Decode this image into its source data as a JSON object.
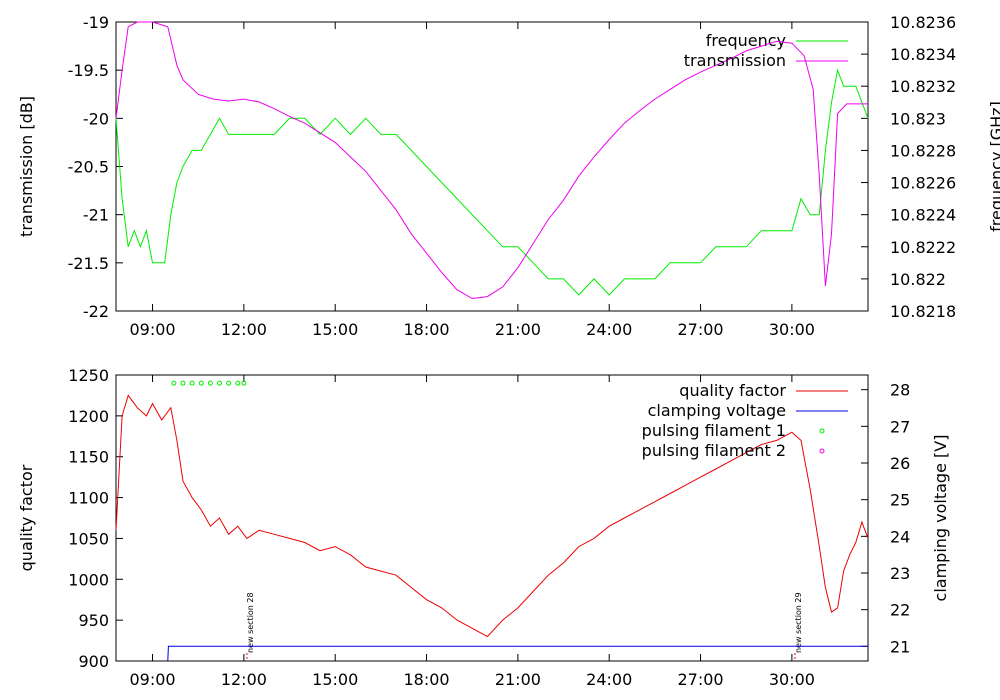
{
  "chart_data": [
    {
      "type": "line",
      "ylabel": "transmission [dB]",
      "y2label": "frequency [GHz]",
      "xticks": [
        "09:00",
        "12:00",
        "15:00",
        "18:00",
        "21:00",
        "24:00",
        "27:00",
        "30:00"
      ],
      "x_tick_hours": [
        9,
        12,
        15,
        18,
        21,
        24,
        27,
        30
      ],
      "xlim_hours": [
        7.8,
        32.5
      ],
      "ylim": [
        -22,
        -19
      ],
      "y_ticks": [
        "-19",
        "-19.5",
        "-20",
        "-20.5",
        "-21",
        "-21.5",
        "-22"
      ],
      "y_tick_values": [
        -19,
        -19.5,
        -20,
        -20.5,
        -21,
        -21.5,
        -22
      ],
      "y2lim": [
        10.8218,
        10.8236
      ],
      "y2_ticks": [
        "10.8236",
        "10.8234",
        "10.8232",
        "10.823",
        "10.8228",
        "10.8226",
        "10.8224",
        "10.8222",
        "10.822",
        "10.8218"
      ],
      "y2_tick_values": [
        10.8236,
        10.8234,
        10.8232,
        10.823,
        10.8228,
        10.8226,
        10.8224,
        10.8222,
        10.822,
        10.8218
      ],
      "legend_position": "top-right",
      "series": [
        {
          "name": "frequency",
          "axis": "y2",
          "color": "#00ee00",
          "x_hours": [
            7.8,
            8.0,
            8.2,
            8.4,
            8.6,
            8.8,
            9.0,
            9.2,
            9.4,
            9.6,
            9.8,
            10.0,
            10.3,
            10.6,
            10.9,
            11.2,
            11.5,
            11.8,
            12.1,
            12.5,
            13.0,
            13.5,
            14.0,
            14.5,
            15.0,
            15.5,
            16.0,
            16.5,
            17.0,
            17.5,
            18.0,
            18.5,
            19.0,
            19.5,
            20.0,
            20.5,
            21.0,
            21.5,
            22.0,
            22.5,
            23.0,
            23.5,
            24.0,
            24.5,
            25.0,
            25.5,
            26.0,
            26.5,
            27.0,
            27.5,
            28.0,
            28.5,
            29.0,
            29.5,
            30.0,
            30.3,
            30.6,
            30.9,
            31.1,
            31.3,
            31.5,
            31.7,
            31.9,
            32.1,
            32.3,
            32.5
          ],
          "values": [
            10.823,
            10.8225,
            10.8222,
            10.8223,
            10.8222,
            10.8223,
            10.8221,
            10.8221,
            10.8221,
            10.8224,
            10.8226,
            10.8227,
            10.8228,
            10.8228,
            10.8229,
            10.823,
            10.8229,
            10.8229,
            10.8229,
            10.8229,
            10.8229,
            10.823,
            10.823,
            10.8229,
            10.823,
            10.8229,
            10.823,
            10.8229,
            10.8229,
            10.8228,
            10.8227,
            10.8226,
            10.8225,
            10.8224,
            10.8223,
            10.8222,
            10.8222,
            10.8221,
            10.822,
            10.822,
            10.8219,
            10.822,
            10.8219,
            10.822,
            10.822,
            10.822,
            10.8221,
            10.8221,
            10.8221,
            10.8222,
            10.8222,
            10.8222,
            10.8223,
            10.8223,
            10.8223,
            10.8225,
            10.8224,
            10.8224,
            10.8228,
            10.8231,
            10.8233,
            10.8232,
            10.8232,
            10.8232,
            10.8231,
            10.823
          ]
        },
        {
          "name": "transmission",
          "axis": "y",
          "color": "#ee00ee",
          "x_hours": [
            7.8,
            8.0,
            8.2,
            8.5,
            9.0,
            9.5,
            9.8,
            10.0,
            10.5,
            11.0,
            11.5,
            12.0,
            12.5,
            13.0,
            13.5,
            14.0,
            14.5,
            15.0,
            15.5,
            16.0,
            16.5,
            17.0,
            17.5,
            18.0,
            18.5,
            19.0,
            19.5,
            20.0,
            20.5,
            21.0,
            21.5,
            22.0,
            22.5,
            23.0,
            23.5,
            24.0,
            24.5,
            25.0,
            25.5,
            26.0,
            26.5,
            27.0,
            27.5,
            28.0,
            28.5,
            29.0,
            29.5,
            30.0,
            30.4,
            30.7,
            30.9,
            31.1,
            31.3,
            31.5,
            31.8,
            32.1,
            32.5
          ],
          "values": [
            -20.0,
            -19.5,
            -19.05,
            -19.0,
            -19.0,
            -19.05,
            -19.45,
            -19.6,
            -19.75,
            -19.8,
            -19.82,
            -19.8,
            -19.83,
            -19.9,
            -19.98,
            -20.05,
            -20.15,
            -20.25,
            -20.4,
            -20.55,
            -20.75,
            -20.95,
            -21.2,
            -21.4,
            -21.6,
            -21.78,
            -21.87,
            -21.85,
            -21.75,
            -21.55,
            -21.3,
            -21.05,
            -20.85,
            -20.6,
            -20.4,
            -20.22,
            -20.05,
            -19.92,
            -19.8,
            -19.7,
            -19.6,
            -19.52,
            -19.45,
            -19.38,
            -19.3,
            -19.25,
            -19.2,
            -19.22,
            -19.35,
            -19.7,
            -20.6,
            -21.74,
            -21.2,
            -19.95,
            -19.85,
            -19.85,
            -19.85
          ]
        }
      ]
    },
    {
      "type": "line",
      "ylabel": "quality factor",
      "y2label": "clamping voltage [V]",
      "xticks": [
        "09:00",
        "12:00",
        "15:00",
        "18:00",
        "21:00",
        "24:00",
        "27:00",
        "30:00"
      ],
      "x_tick_hours": [
        9,
        12,
        15,
        18,
        21,
        24,
        27,
        30
      ],
      "xlim_hours": [
        7.8,
        32.5
      ],
      "ylim": [
        900,
        1250
      ],
      "y_ticks": [
        "1250",
        "1200",
        "1150",
        "1100",
        "1050",
        "1000",
        "950",
        "900"
      ],
      "y_tick_values": [
        1250,
        1200,
        1150,
        1100,
        1050,
        1000,
        950,
        900
      ],
      "y2lim": [
        20.6,
        28.4
      ],
      "y2_ticks": [
        "28",
        "27",
        "26",
        "25",
        "24",
        "23",
        "22",
        "21"
      ],
      "y2_tick_values": [
        28,
        27,
        26,
        25,
        24,
        23,
        22,
        21
      ],
      "legend_position": "top-right",
      "annotations": [
        {
          "text": "new section 28",
          "x_hour": 12.1
        },
        {
          "text": "new section 29",
          "x_hour": 30.1
        }
      ],
      "series": [
        {
          "name": "quality factor",
          "axis": "y",
          "color": "#ee0000",
          "x_hours": [
            7.8,
            8.0,
            8.2,
            8.5,
            8.8,
            9.0,
            9.3,
            9.6,
            9.8,
            10.0,
            10.3,
            10.6,
            10.9,
            11.2,
            11.5,
            11.8,
            12.1,
            12.5,
            13.0,
            13.5,
            14.0,
            14.5,
            15.0,
            15.5,
            16.0,
            16.5,
            17.0,
            17.5,
            18.0,
            18.5,
            19.0,
            19.5,
            20.0,
            20.5,
            21.0,
            21.5,
            22.0,
            22.5,
            23.0,
            23.5,
            24.0,
            24.5,
            25.0,
            25.5,
            26.0,
            26.5,
            27.0,
            27.5,
            28.0,
            28.5,
            29.0,
            29.5,
            30.0,
            30.3,
            30.6,
            30.9,
            31.1,
            31.3,
            31.5,
            31.7,
            31.9,
            32.1,
            32.3,
            32.5
          ],
          "values": [
            1060,
            1200,
            1225,
            1210,
            1200,
            1215,
            1195,
            1210,
            1170,
            1120,
            1100,
            1085,
            1065,
            1075,
            1055,
            1065,
            1050,
            1060,
            1055,
            1050,
            1045,
            1035,
            1040,
            1030,
            1015,
            1010,
            1005,
            990,
            975,
            965,
            950,
            940,
            930,
            950,
            965,
            985,
            1005,
            1020,
            1040,
            1050,
            1065,
            1075,
            1085,
            1095,
            1105,
            1115,
            1125,
            1135,
            1145,
            1155,
            1165,
            1170,
            1180,
            1170,
            1110,
            1040,
            990,
            960,
            965,
            1010,
            1030,
            1045,
            1070,
            1050
          ]
        },
        {
          "name": "clamping voltage",
          "axis": "y2",
          "color": "#0000ee",
          "x_hours": [
            9.5,
            9.52,
            32.5
          ],
          "values": [
            20.6,
            21.0,
            21.0
          ]
        },
        {
          "name": "pulsing filament 1",
          "axis": "y",
          "style": "points",
          "color": "#00ee00",
          "x_hours": [
            9.7,
            10.0,
            10.3,
            10.6,
            10.9,
            11.2,
            11.5,
            11.8,
            12.0
          ],
          "values": [
            1240,
            1240,
            1240,
            1240,
            1240,
            1240,
            1240,
            1240,
            1240
          ]
        },
        {
          "name": "pulsing filament 2",
          "axis": "y",
          "style": "points",
          "color": "#ee00ee",
          "x_hours": [],
          "values": []
        }
      ]
    }
  ]
}
